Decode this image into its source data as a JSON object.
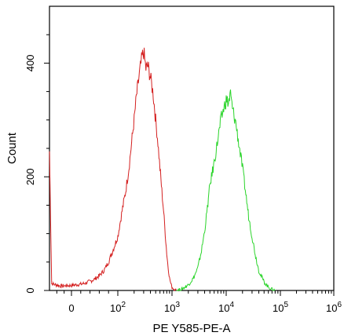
{
  "chart_data": {
    "type": "line",
    "title": "",
    "xlabel": "PE Y585-PE-A",
    "ylabel": "Count",
    "x_scale": "biexponential",
    "xlim": [
      -30,
      1000000
    ],
    "ylim": [
      0,
      500
    ],
    "x_ticks": [
      {
        "value": 0,
        "label": "0"
      },
      {
        "value": 100,
        "label": "10",
        "exp": "2"
      },
      {
        "value": 1000,
        "label": "10",
        "exp": "3"
      },
      {
        "value": 10000,
        "label": "10",
        "exp": "4"
      },
      {
        "value": 100000,
        "label": "10",
        "exp": "5"
      },
      {
        "value": 1000000,
        "label": "10",
        "exp": "6"
      }
    ],
    "y_ticks": [
      {
        "value": 0,
        "label": "0"
      },
      {
        "value": 200,
        "label": "200"
      },
      {
        "value": 400,
        "label": "400"
      }
    ],
    "series": [
      {
        "color": "#d42020",
        "points": [
          [
            -30,
            245
          ],
          [
            -27,
            12
          ],
          [
            -15,
            8
          ],
          [
            0,
            9
          ],
          [
            10,
            10
          ],
          [
            20,
            11
          ],
          [
            30,
            13
          ],
          [
            40,
            16
          ],
          [
            50,
            20
          ],
          [
            60,
            26
          ],
          [
            70,
            35
          ],
          [
            80,
            50
          ],
          [
            90,
            72
          ],
          [
            100,
            95
          ],
          [
            120,
            140
          ],
          [
            140,
            175
          ],
          [
            160,
            215
          ],
          [
            180,
            260
          ],
          [
            200,
            300
          ],
          [
            220,
            340
          ],
          [
            250,
            380
          ],
          [
            280,
            410
          ],
          [
            300,
            420
          ],
          [
            330,
            390
          ],
          [
            360,
            395
          ],
          [
            400,
            375
          ],
          [
            450,
            345
          ],
          [
            500,
            300
          ],
          [
            550,
            260
          ],
          [
            600,
            215
          ],
          [
            650,
            175
          ],
          [
            700,
            140
          ],
          [
            750,
            100
          ],
          [
            800,
            65
          ],
          [
            850,
            40
          ],
          [
            900,
            22
          ],
          [
            950,
            12
          ],
          [
            1000,
            6
          ],
          [
            1100,
            2
          ],
          [
            1200,
            0
          ]
        ]
      },
      {
        "color": "#2ad42a",
        "points": [
          [
            1200,
            0
          ],
          [
            1500,
            2
          ],
          [
            2000,
            10
          ],
          [
            2500,
            22
          ],
          [
            3000,
            40
          ],
          [
            3500,
            70
          ],
          [
            4000,
            105
          ],
          [
            4500,
            145
          ],
          [
            5000,
            185
          ],
          [
            6000,
            225
          ],
          [
            7000,
            265
          ],
          [
            8000,
            300
          ],
          [
            9000,
            320
          ],
          [
            10000,
            335
          ],
          [
            11000,
            330
          ],
          [
            12000,
            345
          ],
          [
            13000,
            320
          ],
          [
            15000,
            295
          ],
          [
            17000,
            260
          ],
          [
            20000,
            215
          ],
          [
            23000,
            170
          ],
          [
            26000,
            130
          ],
          [
            30000,
            95
          ],
          [
            35000,
            60
          ],
          [
            40000,
            35
          ],
          [
            50000,
            15
          ],
          [
            60000,
            6
          ],
          [
            70000,
            2
          ],
          [
            80000,
            0
          ]
        ]
      }
    ]
  }
}
